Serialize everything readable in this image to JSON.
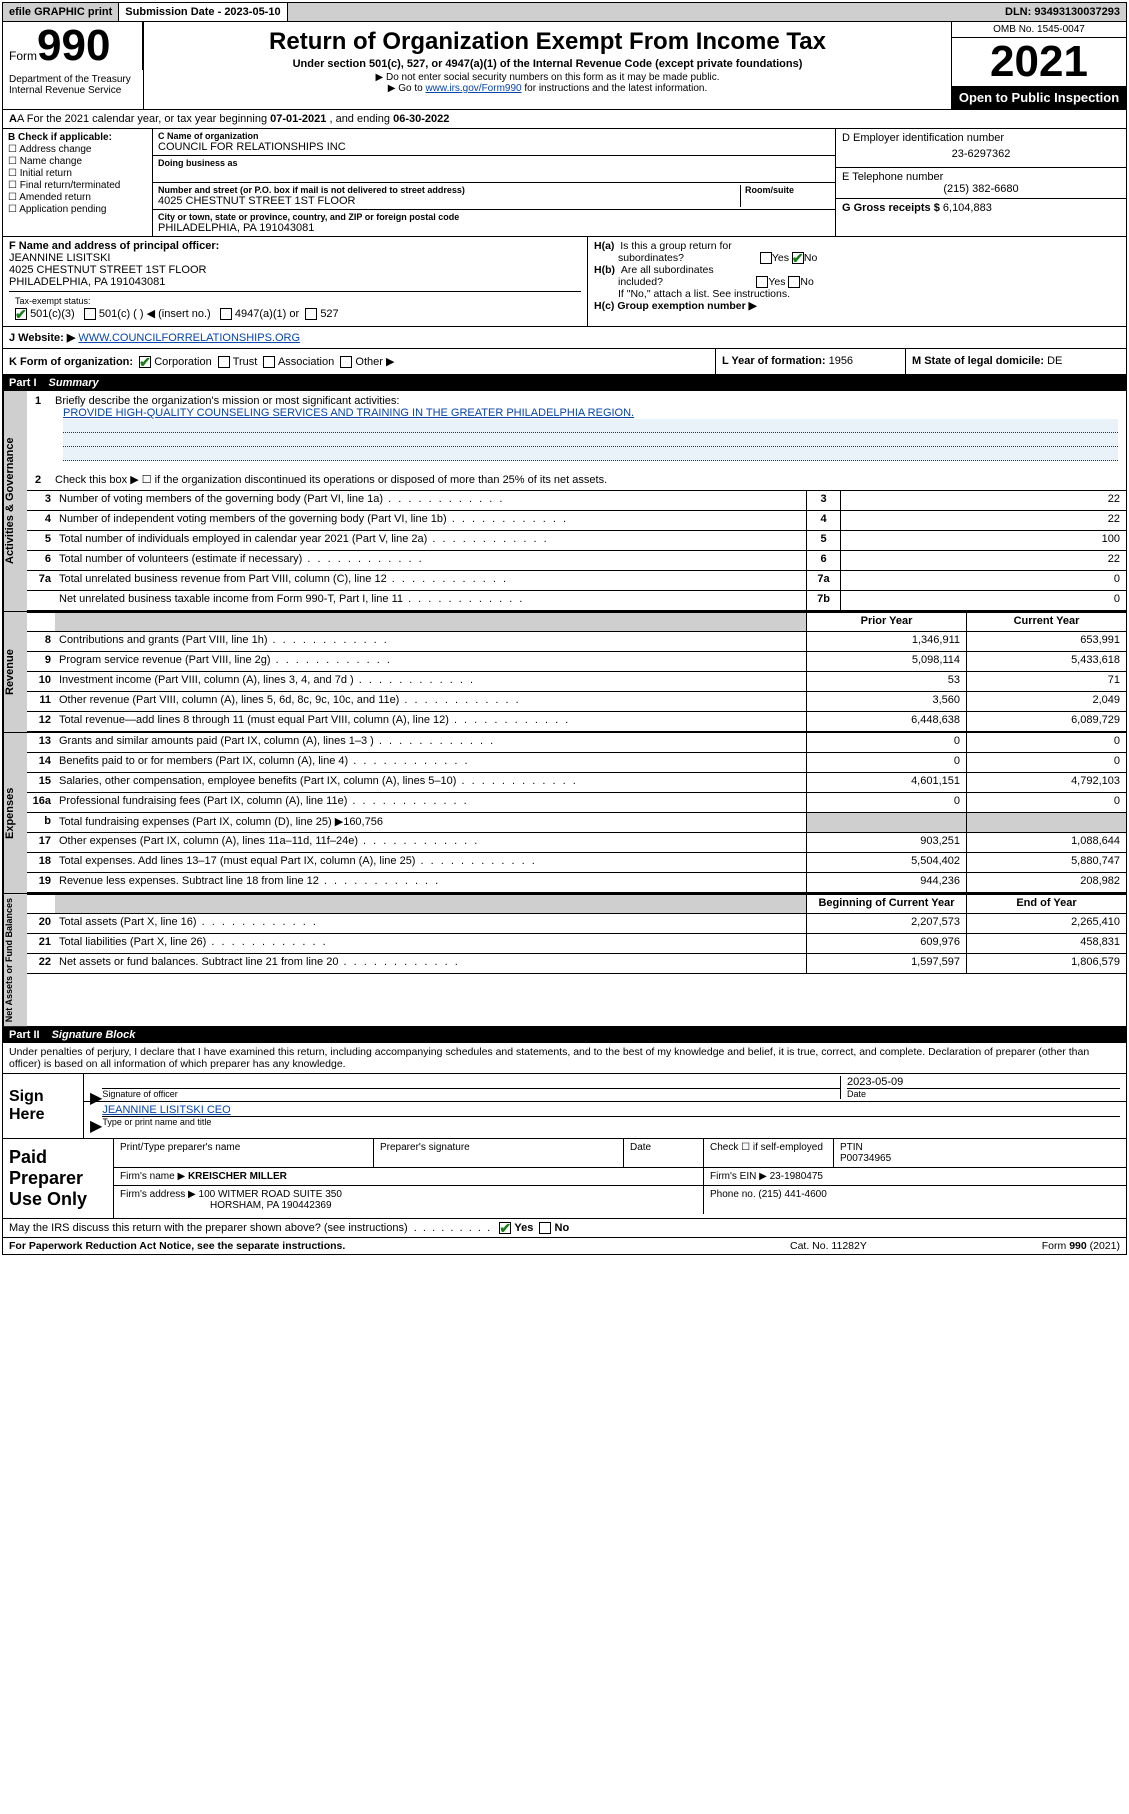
{
  "topbar": {
    "efile": "efile GRAPHIC print",
    "submission_label": "Submission Date - 2023-05-10",
    "dln_label": "DLN: 93493130037293"
  },
  "header": {
    "form_prefix": "Form",
    "form_number": "990",
    "dept": "Department of the Treasury\nInternal Revenue Service",
    "title": "Return of Organization Exempt From Income Tax",
    "sub": "Under section 501(c), 527, or 4947(a)(1) of the Internal Revenue Code (except private foundations)",
    "instr1": "▶ Do not enter social security numbers on this form as it may be made public.",
    "instr2_pre": "▶ Go to ",
    "instr2_link": "www.irs.gov/Form990",
    "instr2_post": " for instructions and the latest information.",
    "omb": "OMB No. 1545-0047",
    "year": "2021",
    "inspect": "Open to Public Inspection"
  },
  "period": {
    "label_a": "A For the 2021 calendar year, or tax year beginning ",
    "begin": "07-01-2021",
    "label_mid": " , and ending ",
    "end": "06-30-2022"
  },
  "box_b": {
    "title": "B Check if applicable:",
    "opt1": "Address change",
    "opt2": "Name change",
    "opt3": "Initial return",
    "opt4": "Final return/terminated",
    "opt5": "Amended return",
    "opt6": "Application pending"
  },
  "box_c": {
    "label": "C Name of organization",
    "name": "COUNCIL FOR RELATIONSHIPS INC",
    "dba_label": "Doing business as",
    "addr_label": "Number and street (or P.O. box if mail is not delivered to street address)",
    "addr": "4025 CHESTNUT STREET 1ST FLOOR",
    "room_label": "Room/suite",
    "city_label": "City or town, state or province, country, and ZIP or foreign postal code",
    "city": "PHILADELPHIA, PA  191043081"
  },
  "box_d": {
    "label": "D Employer identification number",
    "ein": "23-6297362"
  },
  "box_e": {
    "label": "E Telephone number",
    "phone": "(215) 382-6680"
  },
  "box_g": {
    "label": "G Gross receipts $",
    "amount": "6,104,883"
  },
  "box_f": {
    "label": "F Name and address of principal officer:",
    "name": "JEANNINE LISITSKI",
    "addr1": "4025 CHESTNUT STREET 1ST FLOOR",
    "addr2": "PHILADELPHIA, PA  191043081"
  },
  "box_h": {
    "a_label": "H(a)  Is this a group return for subordinates?",
    "b_label": "H(b)  Are all subordinates included?",
    "b_note": "If \"No,\" attach a list. See instructions.",
    "c_label": "H(c)  Group exemption number ▶",
    "yes": "Yes",
    "no": "No"
  },
  "box_i": {
    "label": "Tax-exempt status:",
    "o1": "501(c)(3)",
    "o2": "501(c) (  ) ◀ (insert no.)",
    "o3": "4947(a)(1) or",
    "o4": "527"
  },
  "box_j": {
    "label": "J   Website: ▶",
    "url": "WWW.COUNCILFORRELATIONSHIPS.ORG"
  },
  "box_k": {
    "label": "K Form of organization:",
    "o1": "Corporation",
    "o2": "Trust",
    "o3": "Association",
    "o4": "Other ▶"
  },
  "box_l": {
    "label": "L Year of formation:",
    "val": "1956"
  },
  "box_m": {
    "label": "M State of legal domicile:",
    "val": "DE"
  },
  "part1": {
    "part": "Part I",
    "title": "Summary",
    "line1_label": "Briefly describe the organization's mission or most significant activities:",
    "line1_text": "PROVIDE HIGH-QUALITY COUNSELING SERVICES AND TRAINING IN THE GREATER PHILADELPHIA REGION.",
    "line2": "Check this box ▶ ☐  if the organization discontinued its operations or disposed of more than 25% of its net assets.",
    "vtab1": "Activities & Governance",
    "vtab2": "Revenue",
    "vtab3": "Expenses",
    "vtab4": "Net Assets or Fund Balances",
    "col_prior": "Prior Year",
    "col_current": "Current Year",
    "col_begin": "Beginning of Current Year",
    "col_end": "End of Year",
    "rows_gov": [
      {
        "no": "3",
        "desc": "Number of voting members of the governing body (Part VI, line 1a)",
        "box": "3",
        "val": "22"
      },
      {
        "no": "4",
        "desc": "Number of independent voting members of the governing body (Part VI, line 1b)",
        "box": "4",
        "val": "22"
      },
      {
        "no": "5",
        "desc": "Total number of individuals employed in calendar year 2021 (Part V, line 2a)",
        "box": "5",
        "val": "100"
      },
      {
        "no": "6",
        "desc": "Total number of volunteers (estimate if necessary)",
        "box": "6",
        "val": "22"
      },
      {
        "no": "7a",
        "desc": "Total unrelated business revenue from Part VIII, column (C), line 12",
        "box": "7a",
        "val": "0"
      },
      {
        "no": "",
        "desc": "Net unrelated business taxable income from Form 990-T, Part I, line 11",
        "box": "7b",
        "val": "0"
      }
    ],
    "rows_rev": [
      {
        "no": "8",
        "desc": "Contributions and grants (Part VIII, line 1h)",
        "p": "1,346,911",
        "c": "653,991"
      },
      {
        "no": "9",
        "desc": "Program service revenue (Part VIII, line 2g)",
        "p": "5,098,114",
        "c": "5,433,618"
      },
      {
        "no": "10",
        "desc": "Investment income (Part VIII, column (A), lines 3, 4, and 7d )",
        "p": "53",
        "c": "71"
      },
      {
        "no": "11",
        "desc": "Other revenue (Part VIII, column (A), lines 5, 6d, 8c, 9c, 10c, and 11e)",
        "p": "3,560",
        "c": "2,049"
      },
      {
        "no": "12",
        "desc": "Total revenue—add lines 8 through 11 (must equal Part VIII, column (A), line 12)",
        "p": "6,448,638",
        "c": "6,089,729"
      }
    ],
    "rows_exp": [
      {
        "no": "13",
        "desc": "Grants and similar amounts paid (Part IX, column (A), lines 1–3 )",
        "p": "0",
        "c": "0"
      },
      {
        "no": "14",
        "desc": "Benefits paid to or for members (Part IX, column (A), line 4)",
        "p": "0",
        "c": "0"
      },
      {
        "no": "15",
        "desc": "Salaries, other compensation, employee benefits (Part IX, column (A), lines 5–10)",
        "p": "4,601,151",
        "c": "4,792,103"
      },
      {
        "no": "16a",
        "desc": "Professional fundraising fees (Part IX, column (A), line 11e)",
        "p": "0",
        "c": "0"
      }
    ],
    "row16b": {
      "no": "b",
      "desc": "Total fundraising expenses (Part IX, column (D), line 25) ▶160,756"
    },
    "rows_exp2": [
      {
        "no": "17",
        "desc": "Other expenses (Part IX, column (A), lines 11a–11d, 11f–24e)",
        "p": "903,251",
        "c": "1,088,644"
      },
      {
        "no": "18",
        "desc": "Total expenses. Add lines 13–17 (must equal Part IX, column (A), line 25)",
        "p": "5,504,402",
        "c": "5,880,747"
      },
      {
        "no": "19",
        "desc": "Revenue less expenses. Subtract line 18 from line 12",
        "p": "944,236",
        "c": "208,982"
      }
    ],
    "rows_net": [
      {
        "no": "20",
        "desc": "Total assets (Part X, line 16)",
        "p": "2,207,573",
        "c": "2,265,410"
      },
      {
        "no": "21",
        "desc": "Total liabilities (Part X, line 26)",
        "p": "609,976",
        "c": "458,831"
      },
      {
        "no": "22",
        "desc": "Net assets or fund balances. Subtract line 21 from line 20",
        "p": "1,597,597",
        "c": "1,806,579"
      }
    ]
  },
  "part2": {
    "part": "Part II",
    "title": "Signature Block",
    "penalties": "Under penalties of perjury, I declare that I have examined this return, including accompanying schedules and statements, and to the best of my knowledge and belief, it is true, correct, and complete. Declaration of preparer (other than officer) is based on all information of which preparer has any knowledge.",
    "sign_here": "Sign Here",
    "sig_officer_label": "Signature of officer",
    "date_label": "Date",
    "date_val": "2023-05-09",
    "officer_name": "JEANNINE LISITSKI CEO",
    "officer_sub": "Type or print name and title",
    "paid_label": "Paid Preparer Use Only",
    "p_name_label": "Print/Type preparer's name",
    "p_sig_label": "Preparer's signature",
    "p_date_label": "Date",
    "p_check_label": "Check ☐ if self-employed",
    "ptin_label": "PTIN",
    "ptin": "P00734965",
    "firm_name_label": "Firm's name    ▶",
    "firm_name": "KREISCHER MILLER",
    "firm_ein_label": "Firm's EIN ▶",
    "firm_ein": "23-1980475",
    "firm_addr_label": "Firm's address ▶",
    "firm_addr1": "100 WITMER ROAD SUITE 350",
    "firm_addr2": "HORSHAM, PA  190442369",
    "firm_phone_label": "Phone no.",
    "firm_phone": "(215) 441-4600",
    "may_label": "May the IRS discuss this return with the preparer shown above? (see instructions)",
    "may_yes": "Yes",
    "may_no": "No"
  },
  "footer": {
    "left": "For Paperwork Reduction Act Notice, see the separate instructions.",
    "mid": "Cat. No. 11282Y",
    "right": "Form 990 (2021)"
  }
}
